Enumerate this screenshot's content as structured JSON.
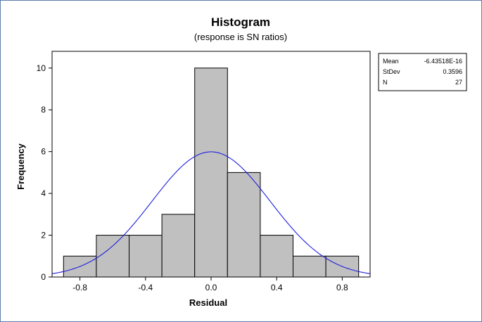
{
  "chart_data": {
    "type": "bar",
    "title": "Histogram",
    "subtitle": "(response is SN ratios)",
    "xlabel": "Residual",
    "ylabel": "Frequency",
    "bins": [
      {
        "from": -0.9,
        "to": -0.7,
        "count": 1
      },
      {
        "from": -0.7,
        "to": -0.5,
        "count": 2
      },
      {
        "from": -0.5,
        "to": -0.3,
        "count": 2
      },
      {
        "from": -0.3,
        "to": -0.1,
        "count": 3
      },
      {
        "from": -0.1,
        "to": 0.1,
        "count": 10
      },
      {
        "from": 0.1,
        "to": 0.3,
        "count": 5
      },
      {
        "from": 0.3,
        "to": 0.5,
        "count": 2
      },
      {
        "from": 0.5,
        "to": 0.7,
        "count": 1
      },
      {
        "from": 0.7,
        "to": 0.9,
        "count": 1
      }
    ],
    "xlim": [
      -0.97,
      0.97
    ],
    "ylim": [
      0,
      10.8
    ],
    "xticks": [
      "-0.8",
      "-0.4",
      "0.0",
      "0.4",
      "0.8"
    ],
    "xtick_values": [
      -0.8,
      -0.4,
      0.0,
      0.4,
      0.8
    ],
    "yticks": [
      "0",
      "2",
      "4",
      "6",
      "8",
      "10"
    ],
    "ytick_values": [
      0,
      2,
      4,
      6,
      8,
      10
    ],
    "normal_curve": {
      "mean": 0,
      "stdev": 0.3596,
      "n": 27,
      "bin_width": 0.2
    },
    "grid": false,
    "stats_box": {
      "rows": [
        {
          "label": "Mean",
          "value": "-6.43518E-16"
        },
        {
          "label": "StDev",
          "value": "0.3596"
        },
        {
          "label": "N",
          "value": "27"
        }
      ]
    },
    "colors": {
      "bar_fill": "#c0c0c0",
      "bar_stroke": "#000000",
      "curve": "#1f1fe0"
    }
  }
}
